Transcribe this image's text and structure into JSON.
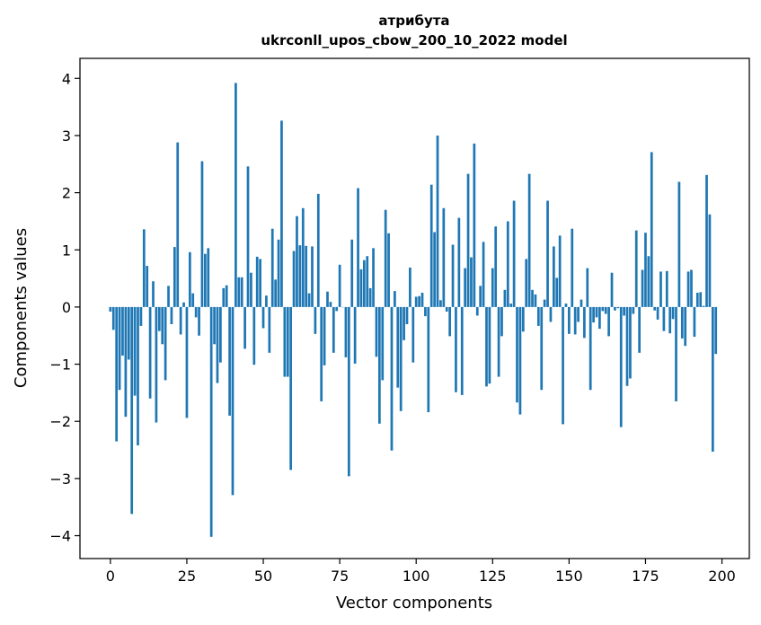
{
  "chart_data": {
    "type": "bar",
    "title_line1": "атрибута",
    "title_line2": "ukrconll_upos_cbow_200_10_2022 model",
    "xlabel": "Vector components",
    "ylabel": "Components values",
    "xlim": [
      -9.95,
      208.95
    ],
    "ylim": [
      -4.4,
      4.35
    ],
    "xticks": [
      0,
      25,
      50,
      75,
      100,
      125,
      150,
      175,
      200
    ],
    "yticks": [
      -4,
      -3,
      -2,
      -1,
      0,
      1,
      2,
      3,
      4
    ],
    "xtick_labels": [
      "0",
      "25",
      "50",
      "75",
      "100",
      "125",
      "150",
      "175",
      "200"
    ],
    "ytick_labels": [
      "−4",
      "−3",
      "−2",
      "−1",
      "0",
      "1",
      "2",
      "3",
      "4"
    ],
    "bar_color": "#1f77b4",
    "grid": false,
    "values": [
      -0.08,
      -0.4,
      -2.35,
      -1.45,
      -0.85,
      -1.92,
      -0.92,
      -3.62,
      -1.55,
      -2.42,
      -0.33,
      1.36,
      0.72,
      -1.6,
      0.45,
      -2.02,
      -0.42,
      -0.65,
      -1.28,
      0.37,
      -0.3,
      1.05,
      2.88,
      -0.48,
      0.08,
      -1.94,
      0.96,
      0.24,
      -0.18,
      -0.5,
      2.55,
      0.93,
      1.03,
      -4.02,
      -0.65,
      -1.33,
      -0.97,
      0.33,
      0.38,
      -1.9,
      -3.29,
      3.92,
      0.52,
      0.52,
      -0.73,
      2.46,
      0.6,
      -1.01,
      0.88,
      0.84,
      -0.37,
      0.2,
      -0.8,
      1.37,
      0.48,
      1.18,
      3.26,
      -1.22,
      -1.22,
      -2.85,
      0.98,
      1.59,
      1.08,
      1.73,
      1.07,
      0.24,
      1.06,
      -0.47,
      1.98,
      -1.65,
      -1.02,
      0.27,
      0.09,
      -0.8,
      -0.07,
      0.74,
      0.0,
      -0.88,
      -2.96,
      1.18,
      -0.99,
      2.08,
      0.66,
      0.82,
      0.89,
      0.33,
      1.03,
      -0.87,
      -2.04,
      -1.28,
      1.7,
      1.29,
      -2.51,
      0.28,
      -1.41,
      -1.82,
      -0.58,
      -0.3,
      0.69,
      -0.97,
      0.18,
      0.19,
      0.25,
      -0.16,
      -1.84,
      2.14,
      1.31,
      3.0,
      0.12,
      1.73,
      -0.08,
      -0.51,
      1.09,
      -1.49,
      1.56,
      -1.54,
      0.68,
      2.33,
      0.87,
      2.86,
      -0.15,
      0.37,
      1.14,
      -1.39,
      -1.34,
      0.68,
      1.41,
      -1.22,
      -0.51,
      0.3,
      1.5,
      0.06,
      1.86,
      -1.67,
      -1.88,
      -0.43,
      0.84,
      2.33,
      0.3,
      0.22,
      -0.33,
      -1.45,
      0.13,
      1.86,
      -0.26,
      1.06,
      0.51,
      1.25,
      -2.05,
      0.06,
      -0.47,
      1.37,
      -0.48,
      -0.26,
      0.13,
      -0.54,
      0.68,
      -1.45,
      -0.27,
      -0.18,
      -0.38,
      -0.07,
      -0.12,
      -0.51,
      0.6,
      -0.06,
      -0.02,
      -2.1,
      -0.15,
      -1.38,
      -1.25,
      -0.12,
      1.34,
      -0.8,
      0.65,
      1.3,
      0.89,
      2.71,
      -0.06,
      -0.22,
      0.62,
      -0.42,
      0.63,
      -0.46,
      -0.21,
      -1.65,
      2.19,
      -0.55,
      -0.68,
      0.62,
      0.65,
      -0.52,
      0.25,
      0.26,
      0.02,
      2.31,
      1.62,
      -2.53,
      -0.82
    ]
  }
}
